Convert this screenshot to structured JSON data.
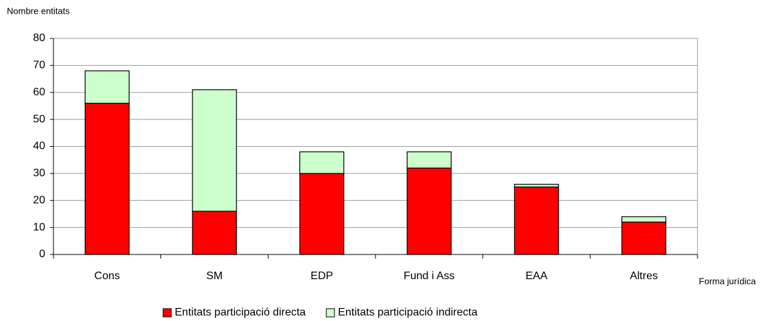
{
  "chart_data": {
    "type": "stacked_bar",
    "ylabel": "Nombre entitats",
    "xlabel": "Forma jurídica",
    "categories": [
      "Cons",
      "SM",
      "EDP",
      "Fund i Ass",
      "EAA",
      "Altres"
    ],
    "series": [
      {
        "name": "Entitats participació directa",
        "color": "#ff0000",
        "values": [
          56,
          16,
          30,
          32,
          25,
          12
        ]
      },
      {
        "name": "Entitats participació indirecta",
        "color": "#ccffcc",
        "values": [
          12,
          45,
          8,
          6,
          1,
          2
        ]
      }
    ],
    "ylim": [
      0,
      80
    ],
    "yticks": [
      0,
      10,
      20,
      30,
      40,
      50,
      60,
      70,
      80
    ],
    "grid": true,
    "legend": "bottom"
  }
}
